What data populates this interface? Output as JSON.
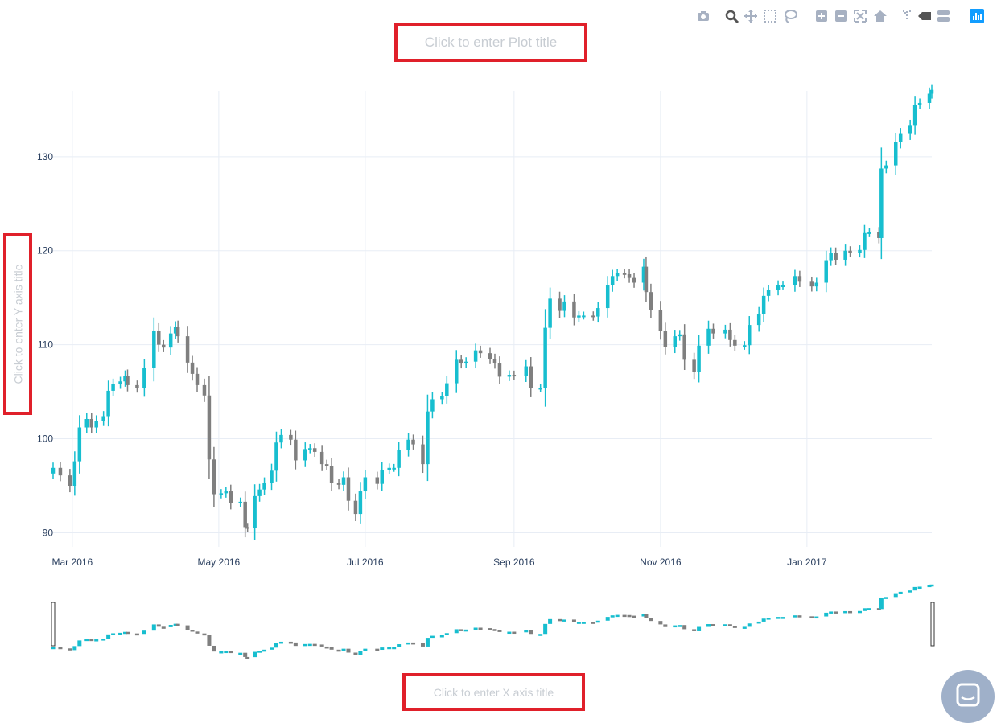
{
  "titles": {
    "plot": "Click to enter Plot title",
    "xaxis": "Click to enter X axis title",
    "yaxis": "Click to enter Y axis title"
  },
  "modebar": {
    "buttons": [
      {
        "name": "camera-icon"
      },
      {
        "name": "zoom-icon"
      },
      {
        "name": "pan-icon"
      },
      {
        "name": "box-select-icon"
      },
      {
        "name": "lasso-icon"
      },
      {
        "name": "zoom-in-icon"
      },
      {
        "name": "zoom-out-icon"
      },
      {
        "name": "autoscale-icon"
      },
      {
        "name": "home-icon"
      },
      {
        "name": "spike-lines-icon"
      },
      {
        "name": "hover-closest-icon"
      },
      {
        "name": "hover-compare-icon"
      },
      {
        "name": "plotly-logo-icon"
      }
    ]
  },
  "colors": {
    "increasing": "#17becf",
    "decreasing": "#7f7f7f",
    "grid": "#e8edf5",
    "tick": "#2a3f5f",
    "rangeslider_handle": "#333333"
  },
  "chart_data": {
    "type": "candlestick",
    "title": "",
    "xlabel": "",
    "ylabel": "",
    "x_range": [
      "2016-02-22",
      "2017-02-22"
    ],
    "ylim": [
      88.5,
      137
    ],
    "y_ticks": [
      90,
      100,
      110,
      120,
      130
    ],
    "x_ticks": [
      {
        "date": "2016-03-01",
        "label": "Mar 2016"
      },
      {
        "date": "2016-05-01",
        "label": "May 2016"
      },
      {
        "date": "2016-07-01",
        "label": "Jul 2016"
      },
      {
        "date": "2016-09-01",
        "label": "Sep 2016"
      },
      {
        "date": "2016-11-01",
        "label": "Nov 2016"
      },
      {
        "date": "2017-01-01",
        "label": "Jan 2017"
      }
    ],
    "grid": true,
    "rangeslider": true,
    "close_series": [
      [
        "2016-02-22",
        96.9
      ],
      [
        "2016-02-25",
        96.1
      ],
      [
        "2016-02-29",
        95.0
      ],
      [
        "2016-03-02",
        97.6
      ],
      [
        "2016-03-04",
        101.2
      ],
      [
        "2016-03-07",
        102.1
      ],
      [
        "2016-03-09",
        101.2
      ],
      [
        "2016-03-11",
        101.9
      ],
      [
        "2016-03-14",
        102.4
      ],
      [
        "2016-03-16",
        105.1
      ],
      [
        "2016-03-18",
        105.8
      ],
      [
        "2016-03-21",
        106.1
      ],
      [
        "2016-03-23",
        106.7
      ],
      [
        "2016-03-24",
        105.7
      ],
      [
        "2016-03-28",
        105.4
      ],
      [
        "2016-03-31",
        107.5
      ],
      [
        "2016-04-04",
        111.5
      ],
      [
        "2016-04-06",
        110.0
      ],
      [
        "2016-04-08",
        109.7
      ],
      [
        "2016-04-11",
        111.2
      ],
      [
        "2016-04-13",
        111.9
      ],
      [
        "2016-04-14",
        110.9
      ],
      [
        "2016-04-18",
        108.1
      ],
      [
        "2016-04-20",
        106.9
      ],
      [
        "2016-04-22",
        105.7
      ],
      [
        "2016-04-25",
        104.6
      ],
      [
        "2016-04-27",
        97.8
      ],
      [
        "2016-04-29",
        94.1
      ],
      [
        "2016-05-02",
        94.2
      ],
      [
        "2016-05-04",
        94.4
      ],
      [
        "2016-05-06",
        93.2
      ],
      [
        "2016-05-10",
        93.3
      ],
      [
        "2016-05-12",
        90.6
      ],
      [
        "2016-05-13",
        90.5
      ],
      [
        "2016-05-16",
        93.9
      ],
      [
        "2016-05-18",
        94.6
      ],
      [
        "2016-05-20",
        95.3
      ],
      [
        "2016-05-23",
        96.6
      ],
      [
        "2016-05-25",
        99.6
      ],
      [
        "2016-05-27",
        100.4
      ],
      [
        "2016-05-31",
        99.9
      ],
      [
        "2016-06-02",
        97.7
      ],
      [
        "2016-06-06",
        98.9
      ],
      [
        "2016-06-08",
        99.0
      ],
      [
        "2016-06-10",
        98.6
      ],
      [
        "2016-06-13",
        97.3
      ],
      [
        "2016-06-15",
        97.1
      ],
      [
        "2016-06-17",
        95.3
      ],
      [
        "2016-06-20",
        95.1
      ],
      [
        "2016-06-22",
        95.9
      ],
      [
        "2016-06-24",
        93.4
      ],
      [
        "2016-06-27",
        92.0
      ],
      [
        "2016-06-29",
        94.4
      ],
      [
        "2016-07-01",
        95.9
      ],
      [
        "2016-07-06",
        95.2
      ],
      [
        "2016-07-08",
        96.7
      ],
      [
        "2016-07-11",
        96.9
      ],
      [
        "2016-07-13",
        96.9
      ],
      [
        "2016-07-15",
        98.8
      ],
      [
        "2016-07-19",
        99.9
      ],
      [
        "2016-07-21",
        99.4
      ],
      [
        "2016-07-25",
        97.3
      ],
      [
        "2016-07-27",
        102.9
      ],
      [
        "2016-07-29",
        104.2
      ],
      [
        "2016-08-02",
        104.5
      ],
      [
        "2016-08-04",
        105.9
      ],
      [
        "2016-08-08",
        108.4
      ],
      [
        "2016-08-10",
        108.0
      ],
      [
        "2016-08-12",
        108.2
      ],
      [
        "2016-08-16",
        109.4
      ],
      [
        "2016-08-18",
        109.1
      ],
      [
        "2016-08-22",
        108.5
      ],
      [
        "2016-08-24",
        108.0
      ],
      [
        "2016-08-26",
        106.6
      ],
      [
        "2016-08-30",
        106.8
      ],
      [
        "2016-09-01",
        106.7
      ],
      [
        "2016-09-06",
        107.7
      ],
      [
        "2016-09-08",
        105.4
      ],
      [
        "2016-09-12",
        105.4
      ],
      [
        "2016-09-14",
        111.8
      ],
      [
        "2016-09-16",
        114.9
      ],
      [
        "2016-09-20",
        113.6
      ],
      [
        "2016-09-22",
        114.6
      ],
      [
        "2016-09-26",
        112.9
      ],
      [
        "2016-09-28",
        113.1
      ],
      [
        "2016-09-30",
        113.1
      ],
      [
        "2016-10-04",
        113.0
      ],
      [
        "2016-10-06",
        113.9
      ],
      [
        "2016-10-10",
        116.3
      ],
      [
        "2016-10-12",
        117.3
      ],
      [
        "2016-10-14",
        117.6
      ],
      [
        "2016-10-17",
        117.5
      ],
      [
        "2016-10-19",
        117.1
      ],
      [
        "2016-10-21",
        116.6
      ],
      [
        "2016-10-25",
        118.3
      ],
      [
        "2016-10-26",
        115.6
      ],
      [
        "2016-10-28",
        113.7
      ],
      [
        "2016-11-01",
        111.5
      ],
      [
        "2016-11-03",
        109.8
      ],
      [
        "2016-11-07",
        110.9
      ],
      [
        "2016-11-09",
        111.1
      ],
      [
        "2016-11-11",
        108.4
      ],
      [
        "2016-11-15",
        107.1
      ],
      [
        "2016-11-17",
        109.9
      ],
      [
        "2016-11-21",
        111.7
      ],
      [
        "2016-11-23",
        111.2
      ],
      [
        "2016-11-28",
        111.6
      ],
      [
        "2016-11-30",
        110.5
      ],
      [
        "2016-12-02",
        109.9
      ],
      [
        "2016-12-06",
        109.95
      ],
      [
        "2016-12-08",
        112.1
      ],
      [
        "2016-12-12",
        113.3
      ],
      [
        "2016-12-14",
        115.2
      ],
      [
        "2016-12-16",
        115.8
      ],
      [
        "2016-12-20",
        116.3
      ],
      [
        "2016-12-22",
        116.3
      ],
      [
        "2016-12-27",
        117.3
      ],
      [
        "2016-12-29",
        116.7
      ],
      [
        "2017-01-03",
        116.2
      ],
      [
        "2017-01-05",
        116.6
      ],
      [
        "2017-01-09",
        118.99
      ],
      [
        "2017-01-11",
        119.75
      ],
      [
        "2017-01-13",
        119.04
      ],
      [
        "2017-01-17",
        120.0
      ],
      [
        "2017-01-19",
        119.78
      ],
      [
        "2017-01-23",
        120.08
      ],
      [
        "2017-01-25",
        121.88
      ],
      [
        "2017-01-27",
        121.95
      ],
      [
        "2017-01-31",
        121.35
      ],
      [
        "2017-02-01",
        128.75
      ],
      [
        "2017-02-03",
        129.08
      ],
      [
        "2017-02-07",
        131.53
      ],
      [
        "2017-02-09",
        132.42
      ],
      [
        "2017-02-13",
        133.29
      ],
      [
        "2017-02-15",
        135.51
      ],
      [
        "2017-02-17",
        135.72
      ],
      [
        "2017-02-21",
        136.7
      ],
      [
        "2017-02-22",
        137.11
      ]
    ]
  }
}
